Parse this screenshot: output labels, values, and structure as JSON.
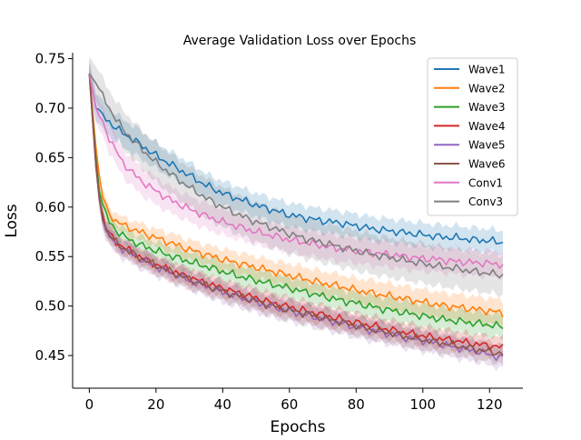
{
  "chart_data": {
    "type": "line",
    "title": "Average Validation Loss over Epochs",
    "xlabel": "Epochs",
    "ylabel": "Loss",
    "xlim": [
      -5,
      130
    ],
    "ylim": [
      0.417,
      0.756
    ],
    "xticks": [
      0,
      20,
      40,
      60,
      80,
      100,
      120
    ],
    "yticks": [
      0.45,
      0.5,
      0.55,
      0.6,
      0.65,
      0.7,
      0.75
    ],
    "ytick_labels": [
      "0.45",
      "0.50",
      "0.55",
      "0.60",
      "0.65",
      "0.70",
      "0.75"
    ],
    "grid": false,
    "legend_position": "top-right",
    "series": [
      {
        "name": "Wave1",
        "color": "#1f77b4",
        "x": [
          0,
          2,
          4,
          6,
          8,
          10,
          15,
          20,
          25,
          30,
          35,
          40,
          45,
          50,
          55,
          60,
          65,
          70,
          75,
          80,
          85,
          90,
          95,
          100,
          105,
          110,
          115,
          120,
          124
        ],
        "y": [
          0.735,
          0.7,
          0.692,
          0.686,
          0.68,
          0.675,
          0.664,
          0.652,
          0.642,
          0.632,
          0.622,
          0.614,
          0.608,
          0.602,
          0.597,
          0.592,
          0.589,
          0.586,
          0.584,
          0.581,
          0.578,
          0.576,
          0.574,
          0.572,
          0.57,
          0.569,
          0.567,
          0.566,
          0.564
        ],
        "band": [
          0.014,
          0.014,
          0.014,
          0.014,
          0.014,
          0.014,
          0.014,
          0.013,
          0.013,
          0.013,
          0.012,
          0.012,
          0.012,
          0.012,
          0.012,
          0.012,
          0.012,
          0.012,
          0.012,
          0.012,
          0.012,
          0.012,
          0.012,
          0.012,
          0.012,
          0.012,
          0.012,
          0.012,
          0.012
        ]
      },
      {
        "name": "Wave2",
        "color": "#ff7f0e",
        "x": [
          0,
          2,
          3,
          4,
          5,
          6,
          8,
          10,
          15,
          20,
          25,
          30,
          35,
          40,
          45,
          50,
          55,
          60,
          65,
          70,
          75,
          80,
          85,
          90,
          95,
          100,
          105,
          110,
          115,
          120,
          124
        ],
        "y": [
          0.735,
          0.66,
          0.63,
          0.612,
          0.6,
          0.593,
          0.586,
          0.582,
          0.575,
          0.569,
          0.563,
          0.557,
          0.552,
          0.547,
          0.543,
          0.539,
          0.535,
          0.531,
          0.527,
          0.523,
          0.52,
          0.516,
          0.513,
          0.51,
          0.507,
          0.504,
          0.501,
          0.499,
          0.497,
          0.495,
          0.493
        ],
        "band": [
          0.008,
          0.008,
          0.008,
          0.008,
          0.008,
          0.008,
          0.008,
          0.008,
          0.009,
          0.009,
          0.01,
          0.01,
          0.01,
          0.011,
          0.011,
          0.011,
          0.011,
          0.012,
          0.012,
          0.012,
          0.012,
          0.012,
          0.013,
          0.013,
          0.013,
          0.013,
          0.013,
          0.013,
          0.013,
          0.013,
          0.013
        ]
      },
      {
        "name": "Wave3",
        "color": "#2ca02c",
        "x": [
          0,
          2,
          3,
          4,
          5,
          6,
          8,
          10,
          15,
          20,
          25,
          30,
          35,
          40,
          45,
          50,
          55,
          60,
          65,
          70,
          75,
          80,
          85,
          90,
          95,
          100,
          105,
          110,
          115,
          120,
          124
        ],
        "y": [
          0.735,
          0.65,
          0.62,
          0.603,
          0.592,
          0.585,
          0.577,
          0.571,
          0.562,
          0.556,
          0.55,
          0.545,
          0.54,
          0.535,
          0.53,
          0.526,
          0.522,
          0.518,
          0.514,
          0.51,
          0.506,
          0.503,
          0.499,
          0.496,
          0.493,
          0.49,
          0.487,
          0.485,
          0.483,
          0.481,
          0.479
        ],
        "band": [
          0.008,
          0.008,
          0.008,
          0.008,
          0.008,
          0.008,
          0.008,
          0.008,
          0.009,
          0.009,
          0.009,
          0.01,
          0.01,
          0.01,
          0.01,
          0.011,
          0.011,
          0.011,
          0.011,
          0.011,
          0.011,
          0.011,
          0.012,
          0.012,
          0.012,
          0.012,
          0.012,
          0.012,
          0.012,
          0.012,
          0.012
        ]
      },
      {
        "name": "Wave4",
        "color": "#d62728",
        "x": [
          0,
          2,
          3,
          4,
          5,
          6,
          8,
          10,
          15,
          20,
          25,
          30,
          35,
          40,
          45,
          50,
          55,
          60,
          65,
          70,
          75,
          80,
          85,
          90,
          95,
          100,
          105,
          110,
          115,
          120,
          124
        ],
        "y": [
          0.735,
          0.645,
          0.61,
          0.592,
          0.58,
          0.573,
          0.565,
          0.56,
          0.55,
          0.542,
          0.535,
          0.529,
          0.523,
          0.518,
          0.513,
          0.508,
          0.503,
          0.499,
          0.495,
          0.491,
          0.487,
          0.483,
          0.48,
          0.476,
          0.473,
          0.47,
          0.467,
          0.465,
          0.462,
          0.46,
          0.458
        ],
        "band": [
          0.008,
          0.008,
          0.008,
          0.008,
          0.008,
          0.008,
          0.008,
          0.008,
          0.008,
          0.008,
          0.009,
          0.009,
          0.009,
          0.009,
          0.009,
          0.01,
          0.01,
          0.01,
          0.01,
          0.01,
          0.01,
          0.01,
          0.01,
          0.01,
          0.01,
          0.01,
          0.01,
          0.01,
          0.01,
          0.01,
          0.01
        ]
      },
      {
        "name": "Wave5",
        "color": "#9467bd",
        "x": [
          0,
          2,
          3,
          4,
          5,
          6,
          8,
          10,
          15,
          20,
          25,
          30,
          35,
          40,
          45,
          50,
          55,
          60,
          65,
          70,
          75,
          80,
          85,
          90,
          95,
          100,
          105,
          110,
          115,
          120,
          124
        ],
        "y": [
          0.735,
          0.64,
          0.606,
          0.589,
          0.578,
          0.571,
          0.563,
          0.558,
          0.548,
          0.54,
          0.533,
          0.526,
          0.52,
          0.514,
          0.509,
          0.504,
          0.499,
          0.495,
          0.491,
          0.487,
          0.483,
          0.479,
          0.475,
          0.472,
          0.468,
          0.465,
          0.462,
          0.458,
          0.455,
          0.451,
          0.447
        ],
        "band": [
          0.01,
          0.01,
          0.01,
          0.01,
          0.01,
          0.01,
          0.01,
          0.01,
          0.01,
          0.01,
          0.01,
          0.01,
          0.01,
          0.011,
          0.011,
          0.011,
          0.011,
          0.011,
          0.011,
          0.011,
          0.011,
          0.011,
          0.011,
          0.011,
          0.011,
          0.011,
          0.011,
          0.011,
          0.011,
          0.011,
          0.011
        ]
      },
      {
        "name": "Wave6",
        "color": "#8c564b",
        "x": [
          0,
          2,
          3,
          4,
          5,
          6,
          8,
          10,
          15,
          20,
          25,
          30,
          35,
          40,
          45,
          50,
          55,
          60,
          65,
          70,
          75,
          80,
          85,
          90,
          95,
          100,
          105,
          110,
          115,
          120,
          124
        ],
        "y": [
          0.735,
          0.642,
          0.608,
          0.59,
          0.579,
          0.572,
          0.564,
          0.559,
          0.549,
          0.541,
          0.534,
          0.527,
          0.521,
          0.515,
          0.51,
          0.505,
          0.5,
          0.496,
          0.492,
          0.488,
          0.484,
          0.48,
          0.476,
          0.473,
          0.469,
          0.466,
          0.463,
          0.46,
          0.457,
          0.454,
          0.452
        ],
        "band": [
          0.008,
          0.008,
          0.008,
          0.008,
          0.008,
          0.008,
          0.008,
          0.008,
          0.008,
          0.009,
          0.009,
          0.009,
          0.009,
          0.009,
          0.009,
          0.009,
          0.01,
          0.01,
          0.01,
          0.01,
          0.01,
          0.01,
          0.01,
          0.01,
          0.01,
          0.01,
          0.01,
          0.01,
          0.01,
          0.01,
          0.01
        ]
      },
      {
        "name": "Conv1",
        "color": "#e377c2",
        "x": [
          0,
          2,
          4,
          6,
          8,
          10,
          15,
          20,
          25,
          30,
          35,
          40,
          45,
          50,
          55,
          60,
          65,
          70,
          75,
          80,
          85,
          90,
          95,
          100,
          105,
          110,
          115,
          120,
          124
        ],
        "y": [
          0.735,
          0.7,
          0.685,
          0.67,
          0.657,
          0.645,
          0.628,
          0.616,
          0.606,
          0.598,
          0.591,
          0.585,
          0.58,
          0.575,
          0.571,
          0.567,
          0.564,
          0.561,
          0.558,
          0.556,
          0.554,
          0.552,
          0.55,
          0.548,
          0.547,
          0.545,
          0.544,
          0.543,
          0.542
        ],
        "band": [
          0.014,
          0.014,
          0.014,
          0.014,
          0.014,
          0.014,
          0.014,
          0.014,
          0.013,
          0.013,
          0.013,
          0.013,
          0.013,
          0.013,
          0.013,
          0.013,
          0.013,
          0.013,
          0.013,
          0.013,
          0.013,
          0.013,
          0.013,
          0.013,
          0.013,
          0.013,
          0.013,
          0.013,
          0.013
        ]
      },
      {
        "name": "Conv3",
        "color": "#7f7f7f",
        "x": [
          0,
          2,
          4,
          6,
          8,
          10,
          15,
          20,
          25,
          30,
          35,
          40,
          45,
          50,
          55,
          60,
          65,
          70,
          75,
          80,
          85,
          90,
          95,
          100,
          105,
          110,
          115,
          120,
          124
        ],
        "y": [
          0.735,
          0.725,
          0.712,
          0.7,
          0.689,
          0.679,
          0.661,
          0.645,
          0.632,
          0.62,
          0.609,
          0.6,
          0.592,
          0.585,
          0.579,
          0.573,
          0.568,
          0.564,
          0.56,
          0.556,
          0.552,
          0.549,
          0.546,
          0.543,
          0.54,
          0.538,
          0.535,
          0.533,
          0.531
        ],
        "band": [
          0.017,
          0.017,
          0.018,
          0.018,
          0.018,
          0.019,
          0.019,
          0.02,
          0.02,
          0.02,
          0.02,
          0.02,
          0.02,
          0.02,
          0.02,
          0.02,
          0.02,
          0.02,
          0.02,
          0.02,
          0.02,
          0.02,
          0.02,
          0.02,
          0.02,
          0.02,
          0.02,
          0.02,
          0.02
        ]
      }
    ]
  }
}
